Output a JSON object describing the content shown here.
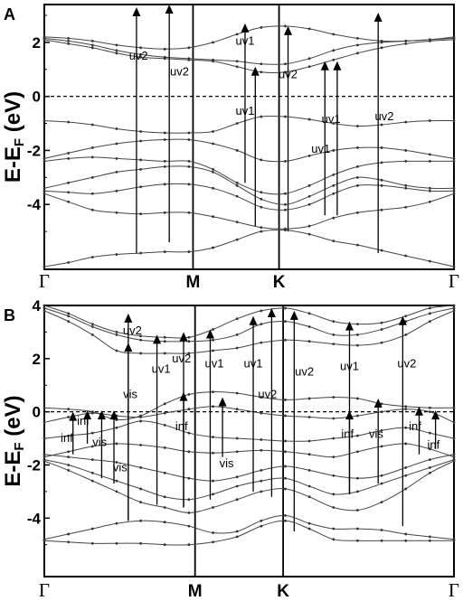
{
  "chart_data": [
    {
      "panel_label": "A",
      "type": "line",
      "ylabel_main": "E-E",
      "ylabel_sub": "F",
      "ylabel_unit": " (eV)",
      "ylim": [
        -6.4,
        3.4
      ],
      "yticks": [
        {
          "value": 2,
          "label": "2"
        },
        {
          "value": 0,
          "label": "0"
        },
        {
          "value": -2,
          "label": "-2"
        },
        {
          "value": -4,
          "label": "-4"
        }
      ],
      "kpoints": [
        {
          "label": "Γ",
          "pos": 0.0,
          "style": "gamma"
        },
        {
          "label": "M",
          "pos": 0.363,
          "style": "bold"
        },
        {
          "label": "K",
          "pos": 0.573,
          "style": "bold"
        },
        {
          "label": "Γ",
          "pos": 1.0,
          "style": "gamma"
        }
      ],
      "fermi_level": 0,
      "bands": [
        [
          2.2,
          2.15,
          2.05,
          1.9,
          1.8,
          1.75,
          1.8,
          2.0,
          2.3,
          2.55,
          2.6,
          2.5,
          2.3,
          2.15,
          2.05,
          2.05,
          2.1,
          2.2
        ],
        [
          2.15,
          2.05,
          1.9,
          1.7,
          1.55,
          1.45,
          1.4,
          1.35,
          1.3,
          1.2,
          1.2,
          1.4,
          1.7,
          1.9,
          2.0,
          2.05,
          2.1,
          2.15
        ],
        [
          2.1,
          1.95,
          1.8,
          1.6,
          1.45,
          1.4,
          1.35,
          1.3,
          1.1,
          0.9,
          0.9,
          1.1,
          1.35,
          1.6,
          1.8,
          1.95,
          2.05,
          2.1
        ],
        [
          -0.9,
          -0.95,
          -1.05,
          -1.2,
          -1.3,
          -1.35,
          -1.35,
          -1.3,
          -1.0,
          -0.75,
          -0.75,
          -0.85,
          -1.0,
          -1.1,
          -1.05,
          -0.95,
          -0.9,
          -0.9
        ],
        [
          -2.3,
          -2.1,
          -1.9,
          -1.75,
          -1.65,
          -1.6,
          -1.6,
          -1.75,
          -2.0,
          -2.35,
          -2.4,
          -2.2,
          -2.0,
          -1.9,
          -1.9,
          -2.0,
          -2.15,
          -2.3
        ],
        [
          -2.4,
          -2.3,
          -2.25,
          -2.3,
          -2.35,
          -2.4,
          -2.4,
          -2.7,
          -3.2,
          -3.55,
          -3.6,
          -3.3,
          -2.9,
          -2.6,
          -2.45,
          -2.4,
          -2.4,
          -2.4
        ],
        [
          -3.4,
          -3.2,
          -3.0,
          -2.8,
          -2.7,
          -2.6,
          -2.6,
          -2.8,
          -3.3,
          -3.8,
          -4.0,
          -3.7,
          -3.3,
          -3.0,
          -3.1,
          -3.3,
          -3.4,
          -3.4
        ],
        [
          -3.5,
          -3.55,
          -3.6,
          -3.5,
          -3.35,
          -3.25,
          -3.25,
          -3.4,
          -3.7,
          -4.1,
          -4.2,
          -4.0,
          -3.6,
          -3.3,
          -3.3,
          -3.4,
          -3.5,
          -3.5
        ],
        [
          -3.6,
          -3.9,
          -4.2,
          -4.3,
          -4.35,
          -4.3,
          -4.3,
          -4.45,
          -4.65,
          -4.85,
          -4.9,
          -4.8,
          -4.5,
          -4.3,
          -4.2,
          -4.1,
          -3.9,
          -3.6
        ],
        [
          -6.3,
          -6.15,
          -5.95,
          -5.85,
          -5.8,
          -5.75,
          -5.75,
          -5.6,
          -5.3,
          -5.0,
          -4.95,
          -5.1,
          -5.35,
          -5.5,
          -5.7,
          -5.9,
          -6.1,
          -6.3
        ]
      ],
      "transitions": [
        {
          "x": 0.225,
          "y0": -5.8,
          "y1": 3.3,
          "label": "uv2",
          "lx": 0.23,
          "ly": 1.5
        },
        {
          "x": 0.305,
          "y0": -5.4,
          "y1": 3.4,
          "label": "uv2",
          "lx": 0.33,
          "ly": 0.9
        },
        {
          "x": 0.49,
          "y0": -3.2,
          "y1": 2.7,
          "label": "uv1",
          "lx": 0.49,
          "ly": 2.05
        },
        {
          "x": 0.515,
          "y0": -4.8,
          "y1": 1.1,
          "label": "uv1",
          "lx": 0.49,
          "ly": -0.55
        },
        {
          "x": 0.595,
          "y0": -5.0,
          "y1": 2.6,
          "label": "uv2",
          "lx": 0.595,
          "ly": 0.8
        },
        {
          "x": 0.685,
          "y0": -4.4,
          "y1": 1.3,
          "label": "uv1",
          "lx": 0.7,
          "ly": -0.85
        },
        {
          "x": 0.715,
          "y0": -4.4,
          "y1": 1.3,
          "label": "uv1",
          "lx": 0.675,
          "ly": -1.95
        },
        {
          "x": 0.815,
          "y0": -5.8,
          "y1": 3.1,
          "label": "uv2",
          "lx": 0.83,
          "ly": -0.75
        }
      ]
    },
    {
      "panel_label": "B",
      "type": "line",
      "ylabel_main": "E-E",
      "ylabel_sub": "F",
      "ylabel_unit": " (eV)",
      "ylim": [
        -6.2,
        4.0
      ],
      "yticks": [
        {
          "value": 4,
          "label": "4"
        },
        {
          "value": 2,
          "label": "2"
        },
        {
          "value": 0,
          "label": "0"
        },
        {
          "value": -2,
          "label": "-2"
        },
        {
          "value": -4,
          "label": "-4"
        }
      ],
      "kpoints": [
        {
          "label": "Γ",
          "pos": 0.0,
          "style": "gamma"
        },
        {
          "label": "M",
          "pos": 0.368,
          "style": "bold"
        },
        {
          "label": "K",
          "pos": 0.583,
          "style": "bold"
        },
        {
          "label": "Γ",
          "pos": 1.0,
          "style": "gamma"
        }
      ],
      "fermi_level": 0,
      "bands": [
        [
          4.0,
          3.7,
          3.3,
          3.0,
          2.85,
          2.8,
          2.8,
          3.1,
          3.5,
          3.8,
          3.9,
          3.7,
          3.4,
          3.3,
          3.35,
          3.6,
          3.9,
          4.0
        ],
        [
          3.9,
          3.6,
          3.2,
          2.9,
          2.7,
          2.65,
          2.65,
          2.7,
          2.9,
          3.3,
          3.4,
          3.2,
          2.9,
          2.9,
          3.1,
          3.4,
          3.7,
          3.9
        ],
        [
          3.8,
          3.4,
          2.9,
          2.3,
          2.2,
          2.2,
          2.2,
          2.3,
          2.4,
          2.6,
          2.7,
          2.65,
          2.55,
          2.5,
          2.6,
          2.9,
          3.4,
          3.8
        ],
        [
          0.15,
          0.1,
          0.0,
          -0.3,
          -0.15,
          0.3,
          0.65,
          0.75,
          0.7,
          0.55,
          0.45,
          0.5,
          0.55,
          0.5,
          0.3,
          0.2,
          0.15,
          0.15
        ],
        [
          -0.4,
          -0.2,
          -0.05,
          -0.15,
          -0.2,
          -0.05,
          0.1,
          0.2,
          0.1,
          -0.05,
          -0.15,
          -0.2,
          -0.25,
          -0.15,
          0.0,
          0.1,
          0.0,
          -0.4
        ],
        [
          -1.0,
          -0.9,
          -0.8,
          -0.6,
          -0.35,
          -0.5,
          -0.8,
          -0.95,
          -1.0,
          -1.05,
          -1.1,
          -1.1,
          -1.0,
          -0.9,
          -0.7,
          -0.6,
          -0.8,
          -1.0
        ],
        [
          -1.7,
          -1.5,
          -1.3,
          -1.2,
          -1.25,
          -1.35,
          -1.5,
          -1.55,
          -1.5,
          -1.45,
          -1.5,
          -1.6,
          -1.7,
          -1.5,
          -1.3,
          -1.2,
          -1.4,
          -1.7
        ],
        [
          -1.6,
          -1.7,
          -1.8,
          -1.9,
          -2.1,
          -2.3,
          -2.5,
          -2.6,
          -2.45,
          -2.2,
          -2.05,
          -2.2,
          -2.4,
          -2.5,
          -2.4,
          -2.1,
          -1.8,
          -1.6
        ],
        [
          -1.8,
          -2.0,
          -2.3,
          -2.6,
          -2.9,
          -3.2,
          -3.3,
          -3.1,
          -2.8,
          -2.6,
          -2.5,
          -2.8,
          -3.1,
          -3.0,
          -2.7,
          -2.4,
          -2.1,
          -1.8
        ],
        [
          -1.85,
          -2.2,
          -2.6,
          -3.0,
          -3.4,
          -3.6,
          -3.8,
          -3.6,
          -3.3,
          -3.0,
          -2.9,
          -3.2,
          -3.6,
          -3.7,
          -3.4,
          -2.9,
          -2.3,
          -1.85
        ],
        [
          -4.8,
          -4.6,
          -4.4,
          -4.2,
          -4.1,
          -4.15,
          -4.3,
          -4.55,
          -4.5,
          -4.1,
          -3.9,
          -4.2,
          -4.4,
          -4.4,
          -4.45,
          -4.6,
          -4.7,
          -4.8
        ],
        [
          -4.85,
          -4.9,
          -4.95,
          -4.95,
          -4.95,
          -5.0,
          -5.0,
          -4.9,
          -4.7,
          -4.3,
          -4.1,
          -4.4,
          -4.8,
          -4.85,
          -4.85,
          -4.85,
          -4.85,
          -4.85
        ]
      ],
      "transitions": [
        {
          "x": 0.07,
          "y0": -1.6,
          "y1": 0.0,
          "label": "inf",
          "lx": 0.055,
          "ly": -1.0
        },
        {
          "x": 0.105,
          "y0": -1.2,
          "y1": 0.05,
          "label": "inf",
          "lx": 0.095,
          "ly": -0.35
        },
        {
          "x": 0.14,
          "y0": -2.5,
          "y1": 0.05,
          "label": "vis",
          "lx": 0.135,
          "ly": -1.15
        },
        {
          "x": 0.17,
          "y0": -2.7,
          "y1": 0.05,
          "label": "vis",
          "lx": 0.185,
          "ly": -2.1
        },
        {
          "x": 0.205,
          "y0": -4.1,
          "y1": 3.7,
          "label": "uv2",
          "lx": 0.215,
          "ly": 3.05
        },
        {
          "x": 0.205,
          "y0": -4.1,
          "y1": 2.6,
          "label": "vis",
          "lx": 0.21,
          "ly": 0.65
        },
        {
          "x": 0.275,
          "y0": -3.5,
          "y1": 2.9,
          "label": "uv1",
          "lx": 0.285,
          "ly": 1.6
        },
        {
          "x": 0.34,
          "y0": -3.6,
          "y1": 3.0,
          "label": "uv2",
          "lx": 0.335,
          "ly": 2.0
        },
        {
          "x": 0.34,
          "y0": -3.6,
          "y1": 0.75,
          "label": "inf",
          "lx": 0.335,
          "ly": -0.55
        },
        {
          "x": 0.405,
          "y0": -3.3,
          "y1": 3.1,
          "label": "uv1",
          "lx": 0.415,
          "ly": 1.8
        },
        {
          "x": 0.435,
          "y0": -1.7,
          "y1": 0.55,
          "label": "vis",
          "lx": 0.445,
          "ly": -1.95
        },
        {
          "x": 0.51,
          "y0": -3.0,
          "y1": 3.6,
          "label": "uv1",
          "lx": 0.51,
          "ly": 1.8
        },
        {
          "x": 0.555,
          "y0": -3.2,
          "y1": 3.9,
          "label": "uv2",
          "lx": 0.545,
          "ly": 0.65
        },
        {
          "x": 0.61,
          "y0": -4.5,
          "y1": 3.8,
          "label": "uv2",
          "lx": 0.635,
          "ly": 1.5
        },
        {
          "x": 0.745,
          "y0": -3.1,
          "y1": 3.4,
          "label": "uv1",
          "lx": 0.745,
          "ly": 1.7
        },
        {
          "x": 0.745,
          "y0": -3.1,
          "y1": 0.05,
          "label": "inf",
          "lx": 0.74,
          "ly": -0.85
        },
        {
          "x": 0.815,
          "y0": -2.7,
          "y1": 0.5,
          "label": "vis",
          "lx": 0.81,
          "ly": -0.85
        },
        {
          "x": 0.875,
          "y0": -4.3,
          "y1": 3.6,
          "label": "uv2",
          "lx": 0.885,
          "ly": 1.8
        },
        {
          "x": 0.915,
          "y0": -1.6,
          "y1": 0.2,
          "label": "inf",
          "lx": 0.905,
          "ly": -0.55
        },
        {
          "x": 0.955,
          "y0": -1.4,
          "y1": 0.05,
          "label": "inf",
          "lx": 0.95,
          "ly": -1.25
        }
      ]
    }
  ]
}
